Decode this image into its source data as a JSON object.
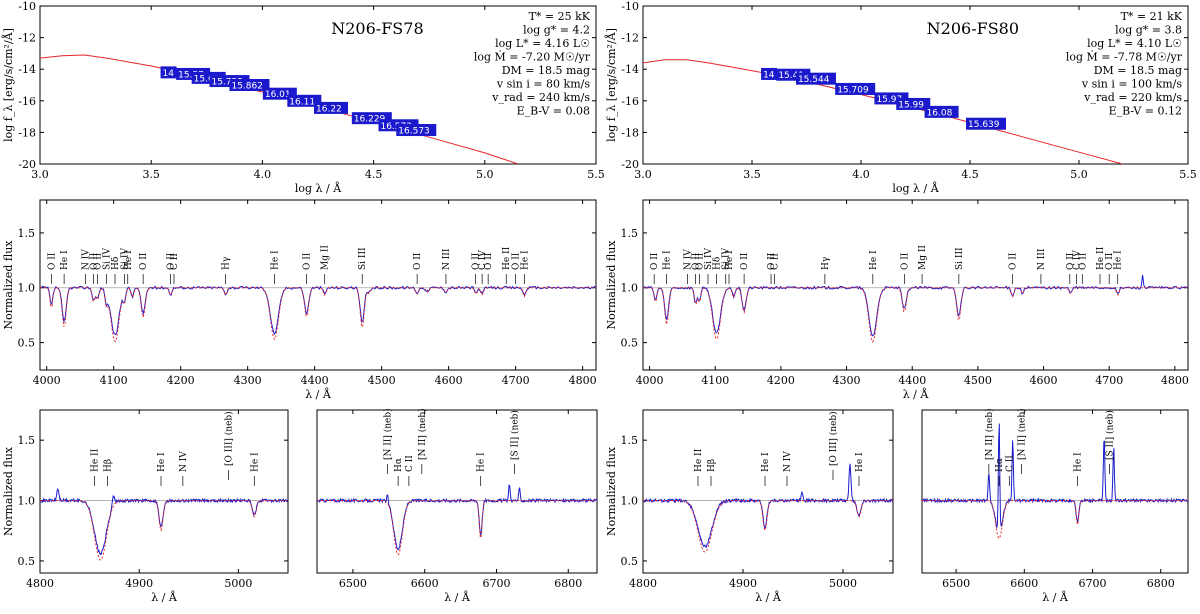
{
  "colors": {
    "model": "#e8262b",
    "observed": "#1c1ccc",
    "marker_bg": "#1a1acc",
    "marker_text": "#ffffff",
    "axis": "#000000",
    "continuum": "#a9a9a9"
  },
  "chart_data": [
    {
      "type": "line",
      "id": "sed-fs78",
      "title": "N206-FS78",
      "xlabel": "log λ / Å",
      "ylabel": "log f_λ [erg/s/cm²/Å]",
      "xlim": [
        3.0,
        5.5
      ],
      "ylim": [
        -20,
        -10
      ],
      "xticks": [
        "3.0",
        "3.5",
        "4.0",
        "4.5",
        "5.0",
        "5.5"
      ],
      "yticks": [
        "-10",
        "-12",
        "-14",
        "-16",
        "-18",
        "-20"
      ],
      "params": [
        "T* = 25 kK",
        "log g* = 4.2",
        "log L* = 4.16 L☉",
        "log Ṁ = -7.20 M☉/yr",
        "DM = 18.5 mag",
        "v sin i = 80 km/s",
        "v_rad = 240 km/s",
        "E_B-V = 0.08"
      ],
      "model": {
        "x": [
          3.0,
          3.1,
          3.2,
          3.3,
          3.4,
          3.5,
          3.6,
          3.8,
          4.0,
          4.2,
          4.4,
          4.6,
          4.8,
          5.0,
          5.15
        ],
        "y": [
          -13.3,
          -13.15,
          -13.1,
          -13.3,
          -13.55,
          -13.8,
          -14.1,
          -14.75,
          -15.45,
          -16.2,
          -16.95,
          -17.7,
          -18.5,
          -19.3,
          -20.0
        ]
      },
      "photometry": [
        {
          "logx": 3.56,
          "logy": -14.2,
          "label": "14"
        },
        {
          "logx": 3.63,
          "logy": -14.3,
          "label": "15.57"
        },
        {
          "logx": 3.7,
          "logy": -14.55,
          "label": "15.61"
        },
        {
          "logx": 3.78,
          "logy": -14.75,
          "label": "15.722"
        },
        {
          "logx": 3.87,
          "logy": -15.0,
          "label": "15.862"
        },
        {
          "logx": 4.02,
          "logy": -15.55,
          "label": "16.01"
        },
        {
          "logx": 4.13,
          "logy": -16.0,
          "label": "16.11"
        },
        {
          "logx": 4.25,
          "logy": -16.45,
          "label": "16.22"
        },
        {
          "logx": 4.42,
          "logy": -17.1,
          "label": "16.229"
        },
        {
          "logx": 4.54,
          "logy": -17.55,
          "label": "16.573"
        },
        {
          "logx": 4.62,
          "logy": -17.85,
          "label": "16.573"
        }
      ]
    },
    {
      "type": "line",
      "id": "sed-fs80",
      "title": "N206-FS80",
      "xlabel": "log λ / Å",
      "ylabel": "log f_λ [erg/s/cm²/Å]",
      "xlim": [
        3.0,
        5.5
      ],
      "ylim": [
        -20,
        -10
      ],
      "xticks": [
        "3.0",
        "3.5",
        "4.0",
        "4.5",
        "5.0",
        "5.5"
      ],
      "yticks": [
        "-10",
        "-12",
        "-14",
        "-16",
        "-18",
        "-20"
      ],
      "params": [
        "T* = 21 kK",
        "log g* = 3.8",
        "log L* = 4.10 L☉",
        "log Ṁ = -7.78 M☉/yr",
        "DM = 18.5 mag",
        "v sin i = 100 km/s",
        "v_rad = 220 km/s",
        "E_B-V = 0.12"
      ],
      "model": {
        "x": [
          3.0,
          3.1,
          3.2,
          3.3,
          3.4,
          3.5,
          3.6,
          3.8,
          4.0,
          4.2,
          4.4,
          4.6,
          4.8,
          5.0,
          5.2
        ],
        "y": [
          -13.6,
          -13.4,
          -13.4,
          -13.6,
          -13.85,
          -14.1,
          -14.35,
          -14.95,
          -15.6,
          -16.3,
          -17.0,
          -17.75,
          -18.5,
          -19.25,
          -20.0
        ]
      },
      "photometry": [
        {
          "logx": 3.56,
          "logy": -14.3,
          "label": "14"
        },
        {
          "logx": 3.63,
          "logy": -14.35,
          "label": "15.41"
        },
        {
          "logx": 3.72,
          "logy": -14.6,
          "label": "15.544"
        },
        {
          "logx": 3.9,
          "logy": -15.25,
          "label": "15.709"
        },
        {
          "logx": 4.08,
          "logy": -15.85,
          "label": "15.97"
        },
        {
          "logx": 4.18,
          "logy": -16.2,
          "label": "15.99"
        },
        {
          "logx": 4.31,
          "logy": -16.7,
          "label": "16.08"
        },
        {
          "logx": 4.5,
          "logy": -17.45,
          "label": "15.639"
        }
      ]
    },
    {
      "type": "line",
      "id": "blue-fs78",
      "xlabel": "λ / Å",
      "ylabel": "Normalized flux",
      "xlim": [
        3990,
        4820
      ],
      "ylim": [
        0.25,
        1.8
      ],
      "xticks": [
        4000,
        4100,
        4200,
        4300,
        4400,
        4500,
        4600,
        4700,
        4800
      ],
      "yticks": [
        0.5,
        1.0,
        1.5
      ],
      "lines": [
        {
          "x": 4007,
          "depth": 0.17,
          "width": 2
        },
        {
          "x": 4026,
          "depth": 0.32,
          "width": 3
        },
        {
          "x": 4070,
          "depth": 0.12,
          "width": 2
        },
        {
          "x": 4076,
          "depth": 0.1,
          "width": 2
        },
        {
          "x": 4089,
          "depth": 0.12,
          "width": 2
        },
        {
          "x": 4102,
          "depth": 0.44,
          "width": 6
        },
        {
          "x": 4116,
          "depth": 0.1,
          "width": 2
        },
        {
          "x": 4128,
          "depth": 0.08,
          "width": 2
        },
        {
          "x": 4144,
          "depth": 0.24,
          "width": 3
        },
        {
          "x": 4185,
          "depth": 0.06,
          "width": 2
        },
        {
          "x": 4267,
          "depth": 0.06,
          "width": 2
        },
        {
          "x": 4340,
          "depth": 0.42,
          "width": 6
        },
        {
          "x": 4388,
          "depth": 0.24,
          "width": 3
        },
        {
          "x": 4415,
          "depth": 0.06,
          "width": 2
        },
        {
          "x": 4471,
          "depth": 0.33,
          "width": 3
        },
        {
          "x": 4481,
          "depth": 0.05,
          "width": 2
        },
        {
          "x": 4553,
          "depth": 0.05,
          "width": 2
        },
        {
          "x": 4568,
          "depth": 0.04,
          "width": 2
        },
        {
          "x": 4596,
          "depth": 0.04,
          "width": 2
        },
        {
          "x": 4641,
          "depth": 0.05,
          "width": 2
        },
        {
          "x": 4650,
          "depth": 0.06,
          "width": 2
        },
        {
          "x": 4713,
          "depth": 0.07,
          "width": 2
        }
      ],
      "labels": [
        "O II",
        "He I",
        "N IV",
        "O II",
        "O II",
        "Si IV",
        "Hδ",
        "Si IV",
        "He I",
        "O II",
        "O II",
        "C II",
        "Hγ",
        "He I",
        "O II",
        "Mg II",
        "Si III",
        "O II",
        "N III",
        "O II",
        "C IV",
        "O II",
        "He II",
        "O II",
        "He I"
      ]
    },
    {
      "type": "line",
      "id": "blue-fs80",
      "xlabel": "λ / Å",
      "ylabel": "Normalized flux",
      "xlim": [
        3990,
        4820
      ],
      "ylim": [
        0.25,
        1.8
      ],
      "xticks": [
        4000,
        4100,
        4200,
        4300,
        4400,
        4500,
        4600,
        4700,
        4800
      ],
      "yticks": [
        0.5,
        1.0,
        1.5
      ],
      "lines": [
        {
          "x": 4009,
          "depth": 0.12,
          "width": 2
        },
        {
          "x": 4026,
          "depth": 0.3,
          "width": 3
        },
        {
          "x": 4070,
          "depth": 0.14,
          "width": 2
        },
        {
          "x": 4076,
          "depth": 0.12,
          "width": 2
        },
        {
          "x": 4102,
          "depth": 0.42,
          "width": 6
        },
        {
          "x": 4128,
          "depth": 0.08,
          "width": 2
        },
        {
          "x": 4144,
          "depth": 0.2,
          "width": 3
        },
        {
          "x": 4340,
          "depth": 0.44,
          "width": 6
        },
        {
          "x": 4388,
          "depth": 0.2,
          "width": 3
        },
        {
          "x": 4471,
          "depth": 0.27,
          "width": 3
        },
        {
          "x": 4553,
          "depth": 0.07,
          "width": 2
        },
        {
          "x": 4568,
          "depth": 0.05,
          "width": 2
        },
        {
          "x": 4641,
          "depth": 0.05,
          "width": 2
        },
        {
          "x": 4713,
          "depth": 0.06,
          "width": 2
        },
        {
          "x": 4751,
          "depth": -0.12,
          "width": 1
        }
      ],
      "labels": [
        "O II",
        "He I",
        "N IV",
        "O II",
        "O II",
        "Si IV",
        "Hδ",
        "Si IV",
        "He I",
        "O II",
        "O II",
        "C II",
        "Hγ",
        "He I",
        "O II",
        "Mg II",
        "Si III",
        "O II",
        "N III",
        "O II",
        "C IV",
        "O II",
        "He II",
        "O II",
        "He I"
      ]
    },
    {
      "type": "line",
      "id": "hbeta-fs78",
      "xlabel": "λ / Å",
      "ylabel": "Normalized flux",
      "xlim": [
        4800,
        5050
      ],
      "ylim": [
        0.4,
        1.75
      ],
      "xticks": [
        4800,
        4900,
        5000
      ],
      "yticks": [
        0.5,
        1.0,
        1.5
      ],
      "lines": [
        {
          "x": 4861,
          "depth": 0.44,
          "width": 6
        },
        {
          "x": 4922,
          "depth": 0.22,
          "width": 2
        },
        {
          "x": 5016,
          "depth": 0.12,
          "width": 2
        },
        {
          "x": 4818,
          "depth": -0.1,
          "width": 1
        },
        {
          "x": 4874,
          "depth": -0.08,
          "width": 1
        }
      ],
      "labels": [
        "He II",
        "Hβ",
        "He I",
        "N IV",
        "[O III] (neb)",
        "He I"
      ]
    },
    {
      "type": "line",
      "id": "halpha-fs78",
      "xlabel": "λ / Å",
      "ylabel": "",
      "xlim": [
        6450,
        6840
      ],
      "ylim": [
        0.4,
        1.75
      ],
      "xticks": [
        6500,
        6600,
        6700,
        6800
      ],
      "yticks": [],
      "lines": [
        {
          "x": 6563,
          "depth": 0.4,
          "width": 6
        },
        {
          "x": 6678,
          "depth": 0.28,
          "width": 2
        },
        {
          "x": 6718,
          "depth": -0.14,
          "width": 1
        },
        {
          "x": 6732,
          "depth": -0.1,
          "width": 1
        },
        {
          "x": 6548,
          "depth": -0.06,
          "width": 1
        }
      ],
      "labels": [
        "[N II] (neb)",
        "Hα",
        "C II",
        "[N II] (neb)",
        "He I",
        "[S II] (neb)"
      ]
    },
    {
      "type": "line",
      "id": "hbeta-fs80",
      "xlabel": "λ / Å",
      "ylabel": "Normalized flux",
      "xlim": [
        4800,
        5050
      ],
      "ylim": [
        0.4,
        1.75
      ],
      "xticks": [
        4800,
        4900,
        5000
      ],
      "yticks": [
        0.5,
        1.0,
        1.5
      ],
      "lines": [
        {
          "x": 4862,
          "depth": 0.38,
          "width": 7
        },
        {
          "x": 4922,
          "depth": 0.22,
          "width": 2
        },
        {
          "x": 5016,
          "depth": 0.12,
          "width": 2
        },
        {
          "x": 5007,
          "depth": -0.3,
          "width": 1
        },
        {
          "x": 4959,
          "depth": -0.06,
          "width": 1
        }
      ],
      "labels": [
        "He II",
        "Hβ",
        "He I",
        "N IV",
        "[O III] (neb)",
        "He I"
      ]
    },
    {
      "type": "line",
      "id": "halpha-fs80",
      "xlabel": "λ / Å",
      "ylabel": "",
      "xlim": [
        6450,
        6840
      ],
      "ylim": [
        0.4,
        1.75
      ],
      "xticks": [
        6500,
        6600,
        6700,
        6800
      ],
      "yticks": [],
      "lines": [
        {
          "x": 6563,
          "depth": 0.28,
          "width": 5
        },
        {
          "x": 6678,
          "depth": 0.18,
          "width": 2
        },
        {
          "x": 6563,
          "depth": -0.95,
          "width": 1
        },
        {
          "x": 6548,
          "depth": -0.25,
          "width": 1
        },
        {
          "x": 6583,
          "depth": -0.5,
          "width": 1
        },
        {
          "x": 6717,
          "depth": -0.55,
          "width": 1
        },
        {
          "x": 6731,
          "depth": -0.45,
          "width": 1
        }
      ],
      "labels": [
        "[N II] (neb)",
        "Hα",
        "C II",
        "[N II] (neb)",
        "He I",
        "[S II] (neb)"
      ]
    }
  ]
}
